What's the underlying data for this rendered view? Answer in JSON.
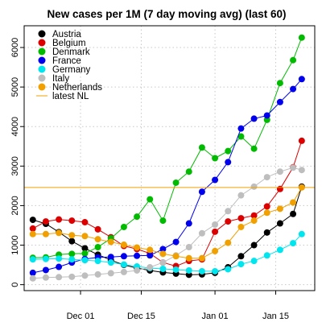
{
  "chart_data": {
    "type": "line",
    "title": "New cases per 1M (7 day moving avg) (last 60)",
    "xlabel": "",
    "ylabel": "",
    "x_start": "2020-11-20",
    "x_end": "2021-01-21",
    "xlim": [
      "2020-11-18",
      "2021-01-24"
    ],
    "ylim": [
      -150,
      6550
    ],
    "x_ticks": [
      {
        "date": "2020-12-01",
        "label": "Dec 01"
      },
      {
        "date": "2020-12-15",
        "label": "Dec 15"
      },
      {
        "date": "2021-01-01",
        "label": "Jan 01"
      },
      {
        "date": "2021-01-15",
        "label": "Jan 15"
      }
    ],
    "y_ticks": [
      0,
      1000,
      2000,
      3000,
      4000,
      5000,
      6000
    ],
    "grid": true,
    "legend_position": "top-left",
    "hline": {
      "name": "latest NL",
      "value": 2460,
      "color": "#f0a000"
    },
    "series": [
      {
        "name": "Austria",
        "color": "#000000",
        "points": [
          {
            "x": "2020-11-20",
            "y": 1640
          },
          {
            "x": "2020-11-23",
            "y": 1540
          },
          {
            "x": "2020-11-26",
            "y": 1330
          },
          {
            "x": "2020-11-29",
            "y": 1100
          },
          {
            "x": "2020-12-02",
            "y": 920
          },
          {
            "x": "2020-12-05",
            "y": 760
          },
          {
            "x": "2020-12-08",
            "y": 620
          },
          {
            "x": "2020-12-11",
            "y": 500
          },
          {
            "x": "2020-12-14",
            "y": 420
          },
          {
            "x": "2020-12-17",
            "y": 360
          },
          {
            "x": "2020-12-20",
            "y": 310
          },
          {
            "x": "2020-12-23",
            "y": 280
          },
          {
            "x": "2020-12-26",
            "y": 250
          },
          {
            "x": "2020-12-29",
            "y": 260
          },
          {
            "x": "2021-01-01",
            "y": 300
          },
          {
            "x": "2021-01-04",
            "y": 440
          },
          {
            "x": "2021-01-07",
            "y": 720
          },
          {
            "x": "2021-01-10",
            "y": 1000
          },
          {
            "x": "2021-01-13",
            "y": 1320
          },
          {
            "x": "2021-01-16",
            "y": 1550
          },
          {
            "x": "2021-01-19",
            "y": 1790
          },
          {
            "x": "2021-01-21",
            "y": 2480
          }
        ]
      },
      {
        "name": "Belgium",
        "color": "#dd0000",
        "points": [
          {
            "x": "2020-11-20",
            "y": 1420
          },
          {
            "x": "2020-11-23",
            "y": 1600
          },
          {
            "x": "2020-11-26",
            "y": 1650
          },
          {
            "x": "2020-11-29",
            "y": 1620
          },
          {
            "x": "2020-12-02",
            "y": 1580
          },
          {
            "x": "2020-12-05",
            "y": 1400
          },
          {
            "x": "2020-12-08",
            "y": 1200
          },
          {
            "x": "2020-12-11",
            "y": 980
          },
          {
            "x": "2020-12-14",
            "y": 900
          },
          {
            "x": "2020-12-17",
            "y": 790
          },
          {
            "x": "2020-12-20",
            "y": 560
          },
          {
            "x": "2020-12-23",
            "y": 470
          },
          {
            "x": "2020-12-26",
            "y": 600
          },
          {
            "x": "2020-12-29",
            "y": 640
          },
          {
            "x": "2021-01-01",
            "y": 1340
          },
          {
            "x": "2021-01-04",
            "y": 1600
          },
          {
            "x": "2021-01-07",
            "y": 1680
          },
          {
            "x": "2021-01-10",
            "y": 1750
          },
          {
            "x": "2021-01-13",
            "y": 1980
          },
          {
            "x": "2021-01-16",
            "y": 2420
          },
          {
            "x": "2021-01-19",
            "y": 2970
          },
          {
            "x": "2021-01-21",
            "y": 3640
          }
        ]
      },
      {
        "name": "Denmark",
        "color": "#00bb00",
        "points": [
          {
            "x": "2020-11-20",
            "y": 680
          },
          {
            "x": "2020-11-23",
            "y": 690
          },
          {
            "x": "2020-11-26",
            "y": 760
          },
          {
            "x": "2020-11-29",
            "y": 780
          },
          {
            "x": "2020-12-02",
            "y": 790
          },
          {
            "x": "2020-12-05",
            "y": 950
          },
          {
            "x": "2020-12-08",
            "y": 1170
          },
          {
            "x": "2020-12-11",
            "y": 1460
          },
          {
            "x": "2020-12-14",
            "y": 1720
          },
          {
            "x": "2020-12-17",
            "y": 2160
          },
          {
            "x": "2020-12-20",
            "y": 1620
          },
          {
            "x": "2020-12-23",
            "y": 2580
          },
          {
            "x": "2020-12-26",
            "y": 2860
          },
          {
            "x": "2020-12-29",
            "y": 3470
          },
          {
            "x": "2021-01-01",
            "y": 3200
          },
          {
            "x": "2021-01-04",
            "y": 3380
          },
          {
            "x": "2021-01-07",
            "y": 3750
          },
          {
            "x": "2021-01-10",
            "y": 3440
          },
          {
            "x": "2021-01-13",
            "y": 4170
          },
          {
            "x": "2021-01-16",
            "y": 5100
          },
          {
            "x": "2021-01-19",
            "y": 5680
          },
          {
            "x": "2021-01-21",
            "y": 6250
          }
        ]
      },
      {
        "name": "France",
        "color": "#0000ee",
        "points": [
          {
            "x": "2020-11-20",
            "y": 300
          },
          {
            "x": "2020-11-23",
            "y": 370
          },
          {
            "x": "2020-11-26",
            "y": 450
          },
          {
            "x": "2020-11-29",
            "y": 560
          },
          {
            "x": "2020-12-02",
            "y": 650
          },
          {
            "x": "2020-12-05",
            "y": 690
          },
          {
            "x": "2020-12-08",
            "y": 700
          },
          {
            "x": "2020-12-11",
            "y": 720
          },
          {
            "x": "2020-12-14",
            "y": 730
          },
          {
            "x": "2020-12-17",
            "y": 740
          },
          {
            "x": "2020-12-20",
            "y": 900
          },
          {
            "x": "2020-12-23",
            "y": 1080
          },
          {
            "x": "2020-12-26",
            "y": 1550
          },
          {
            "x": "2020-12-29",
            "y": 2350
          },
          {
            "x": "2021-01-01",
            "y": 2650
          },
          {
            "x": "2021-01-04",
            "y": 3100
          },
          {
            "x": "2021-01-07",
            "y": 3950
          },
          {
            "x": "2021-01-10",
            "y": 4200
          },
          {
            "x": "2021-01-13",
            "y": 4280
          },
          {
            "x": "2021-01-16",
            "y": 4620
          },
          {
            "x": "2021-01-19",
            "y": 4950
          },
          {
            "x": "2021-01-21",
            "y": 5200
          }
        ]
      },
      {
        "name": "Germany",
        "color": "#00e5ee",
        "points": [
          {
            "x": "2020-11-20",
            "y": 640
          },
          {
            "x": "2020-11-23",
            "y": 650
          },
          {
            "x": "2020-11-26",
            "y": 660
          },
          {
            "x": "2020-11-29",
            "y": 640
          },
          {
            "x": "2020-12-02",
            "y": 620
          },
          {
            "x": "2020-12-05",
            "y": 600
          },
          {
            "x": "2020-12-08",
            "y": 560
          },
          {
            "x": "2020-12-11",
            "y": 510
          },
          {
            "x": "2020-12-14",
            "y": 460
          },
          {
            "x": "2020-12-17",
            "y": 420
          },
          {
            "x": "2020-12-20",
            "y": 400
          },
          {
            "x": "2020-12-23",
            "y": 380
          },
          {
            "x": "2020-12-26",
            "y": 360
          },
          {
            "x": "2020-12-29",
            "y": 340
          },
          {
            "x": "2021-01-01",
            "y": 340
          },
          {
            "x": "2021-01-04",
            "y": 390
          },
          {
            "x": "2021-01-07",
            "y": 520
          },
          {
            "x": "2021-01-10",
            "y": 600
          },
          {
            "x": "2021-01-13",
            "y": 740
          },
          {
            "x": "2021-01-16",
            "y": 880
          },
          {
            "x": "2021-01-19",
            "y": 1050
          },
          {
            "x": "2021-01-21",
            "y": 1280
          }
        ]
      },
      {
        "name": "Italy",
        "color": "#bebebe",
        "points": [
          {
            "x": "2020-11-20",
            "y": 160
          },
          {
            "x": "2020-11-23",
            "y": 180
          },
          {
            "x": "2020-11-26",
            "y": 190
          },
          {
            "x": "2020-11-29",
            "y": 200
          },
          {
            "x": "2020-12-02",
            "y": 230
          },
          {
            "x": "2020-12-05",
            "y": 260
          },
          {
            "x": "2020-12-08",
            "y": 290
          },
          {
            "x": "2020-12-11",
            "y": 320
          },
          {
            "x": "2020-12-14",
            "y": 360
          },
          {
            "x": "2020-12-17",
            "y": 440
          },
          {
            "x": "2020-12-20",
            "y": 560
          },
          {
            "x": "2020-12-23",
            "y": 740
          },
          {
            "x": "2020-12-26",
            "y": 950
          },
          {
            "x": "2020-12-29",
            "y": 1300
          },
          {
            "x": "2021-01-01",
            "y": 1520
          },
          {
            "x": "2021-01-04",
            "y": 1860
          },
          {
            "x": "2021-01-07",
            "y": 2260
          },
          {
            "x": "2021-01-10",
            "y": 2480
          },
          {
            "x": "2021-01-13",
            "y": 2720
          },
          {
            "x": "2021-01-16",
            "y": 2860
          },
          {
            "x": "2021-01-19",
            "y": 2960
          },
          {
            "x": "2021-01-21",
            "y": 2900
          }
        ]
      },
      {
        "name": "Netherlands",
        "color": "#f0a000",
        "points": [
          {
            "x": "2020-11-20",
            "y": 1280
          },
          {
            "x": "2020-11-23",
            "y": 1280
          },
          {
            "x": "2020-11-26",
            "y": 1310
          },
          {
            "x": "2020-11-29",
            "y": 1250
          },
          {
            "x": "2020-12-02",
            "y": 1230
          },
          {
            "x": "2020-12-05",
            "y": 1150
          },
          {
            "x": "2020-12-08",
            "y": 1080
          },
          {
            "x": "2020-12-11",
            "y": 1010
          },
          {
            "x": "2020-12-14",
            "y": 940
          },
          {
            "x": "2020-12-17",
            "y": 880
          },
          {
            "x": "2020-12-20",
            "y": 780
          },
          {
            "x": "2020-12-23",
            "y": 720
          },
          {
            "x": "2020-12-26",
            "y": 670
          },
          {
            "x": "2020-12-29",
            "y": 670
          },
          {
            "x": "2021-01-01",
            "y": 850
          },
          {
            "x": "2021-01-04",
            "y": 1060
          },
          {
            "x": "2021-01-07",
            "y": 1460
          },
          {
            "x": "2021-01-10",
            "y": 1620
          },
          {
            "x": "2021-01-13",
            "y": 1820
          },
          {
            "x": "2021-01-16",
            "y": 1920
          },
          {
            "x": "2021-01-19",
            "y": 2080
          },
          {
            "x": "2021-01-21",
            "y": 2460
          }
        ]
      }
    ]
  }
}
